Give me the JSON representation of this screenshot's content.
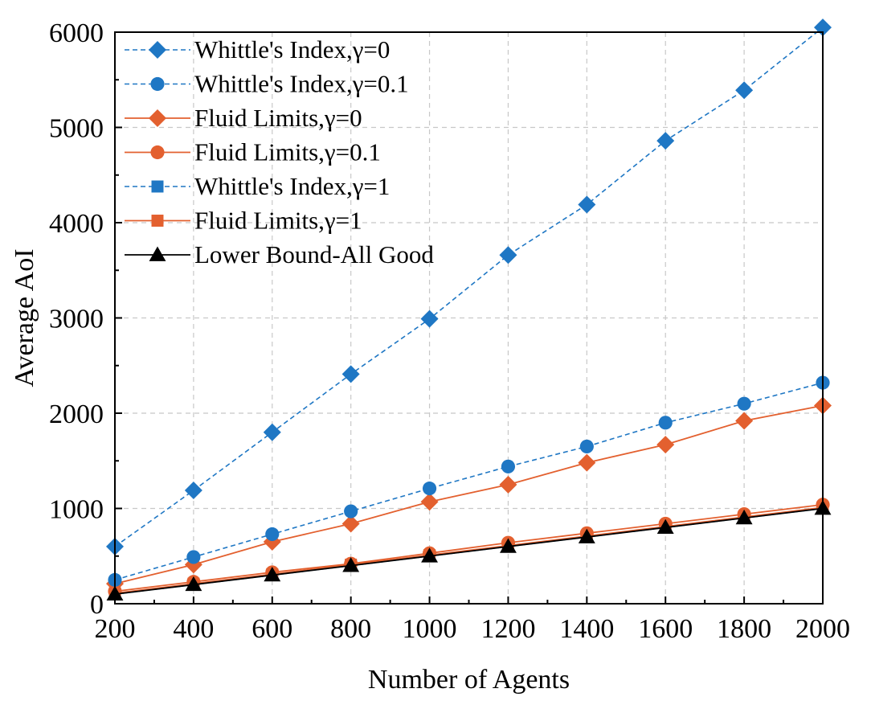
{
  "chart_data": {
    "type": "line",
    "title": "",
    "xlabel": "Number of Agents",
    "ylabel": "Average AoI",
    "xlim": [
      200,
      2000
    ],
    "ylim": [
      0,
      6000
    ],
    "x_ticks": [
      200,
      400,
      600,
      800,
      1000,
      1200,
      1400,
      1600,
      1800,
      2000
    ],
    "y_ticks": [
      0,
      1000,
      2000,
      3000,
      4000,
      5000,
      6000
    ],
    "x_tick_labels": [
      "200",
      "400",
      "600",
      "800",
      "1000",
      "1200",
      "1400",
      "1600",
      "1800",
      "2000"
    ],
    "y_tick_labels": [
      "0",
      "1000",
      "2000",
      "3000",
      "4000",
      "5000",
      "6000"
    ],
    "grid": true,
    "legend_position": "top-left",
    "x": [
      200,
      400,
      600,
      800,
      1000,
      1200,
      1400,
      1600,
      1800,
      2000
    ],
    "series": [
      {
        "name": "Whittle's Index,γ=0",
        "color": "#1f77c4",
        "line": "dashed",
        "marker": "diamond",
        "values": [
          600,
          1190,
          1800,
          2410,
          2990,
          3660,
          4190,
          4860,
          5390,
          6050
        ]
      },
      {
        "name": "Whittle's Index,γ=0.1",
        "color": "#1f77c4",
        "line": "dashed",
        "marker": "circle",
        "values": [
          250,
          490,
          730,
          970,
          1210,
          1440,
          1650,
          1900,
          2100,
          2320
        ]
      },
      {
        "name": "Fluid Limits,γ=0",
        "color": "#e3602f",
        "line": "solid",
        "marker": "diamond",
        "values": [
          210,
          410,
          650,
          840,
          1070,
          1250,
          1480,
          1670,
          1920,
          2080
        ]
      },
      {
        "name": "Fluid Limits,γ=0.1",
        "color": "#e3602f",
        "line": "solid",
        "marker": "circle",
        "values": [
          130,
          230,
          330,
          420,
          530,
          640,
          740,
          840,
          940,
          1040
        ]
      },
      {
        "name": "Whittle's Index,γ=1",
        "color": "#1f77c4",
        "line": "dashed",
        "marker": "square",
        "values": [
          100,
          200,
          300,
          400,
          500,
          600,
          700,
          800,
          900,
          1000
        ]
      },
      {
        "name": "Fluid Limits,γ=1",
        "color": "#e3602f",
        "line": "solid",
        "marker": "square",
        "values": [
          110,
          210,
          310,
          410,
          510,
          610,
          710,
          810,
          910,
          1010
        ]
      },
      {
        "name": "Lower Bound-All Good",
        "color": "#000000",
        "line": "solid",
        "marker": "triangle",
        "values": [
          100,
          200,
          300,
          400,
          500,
          600,
          700,
          800,
          900,
          1000
        ]
      }
    ]
  }
}
